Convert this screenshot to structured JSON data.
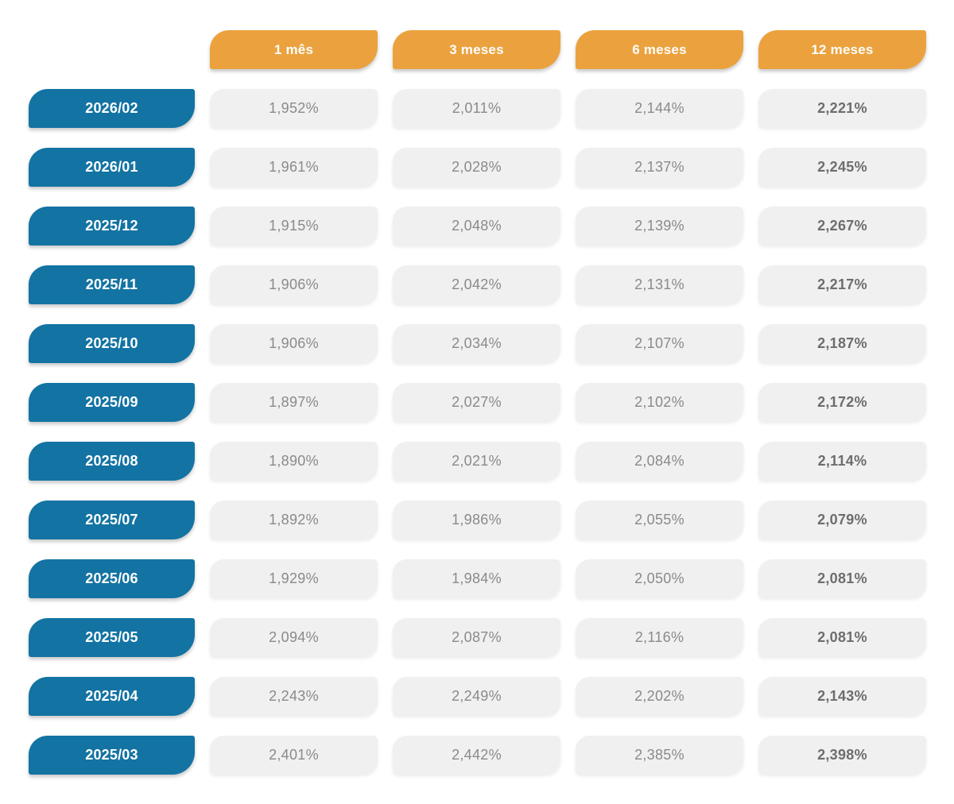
{
  "chart_data": {
    "type": "table",
    "title": "",
    "column_headers": [
      "1 mês",
      "3 meses",
      "6 meses",
      "12 meses"
    ],
    "rows": [
      {
        "label": "2026/02",
        "values": [
          "1,952%",
          "2,011%",
          "2,144%",
          "2,221%"
        ]
      },
      {
        "label": "2026/01",
        "values": [
          "1,961%",
          "2,028%",
          "2,137%",
          "2,245%"
        ]
      },
      {
        "label": "2025/12",
        "values": [
          "1,915%",
          "2,048%",
          "2,139%",
          "2,267%"
        ]
      },
      {
        "label": "2025/11",
        "values": [
          "1,906%",
          "2,042%",
          "2,131%",
          "2,217%"
        ]
      },
      {
        "label": "2025/10",
        "values": [
          "1,906%",
          "2,034%",
          "2,107%",
          "2,187%"
        ]
      },
      {
        "label": "2025/09",
        "values": [
          "1,897%",
          "2,027%",
          "2,102%",
          "2,172%"
        ]
      },
      {
        "label": "2025/08",
        "values": [
          "1,890%",
          "2,021%",
          "2,084%",
          "2,114%"
        ]
      },
      {
        "label": "2025/07",
        "values": [
          "1,892%",
          "1,986%",
          "2,055%",
          "2,079%"
        ]
      },
      {
        "label": "2025/06",
        "values": [
          "1,929%",
          "1,984%",
          "2,050%",
          "2,081%"
        ]
      },
      {
        "label": "2025/05",
        "values": [
          "2,094%",
          "2,087%",
          "2,116%",
          "2,081%"
        ]
      },
      {
        "label": "2025/04",
        "values": [
          "2,243%",
          "2,249%",
          "2,202%",
          "2,143%"
        ]
      },
      {
        "label": "2025/03",
        "values": [
          "2,401%",
          "2,442%",
          "2,385%",
          "2,398%"
        ]
      }
    ],
    "layout_hints": {
      "last_column_bold": true,
      "grid": "off"
    }
  },
  "colors": {
    "header_bg": "#EBA23E",
    "row_label_bg": "#1373A3",
    "value_cell_bg": "#F0F0F0",
    "value_text": "#8A8A8A",
    "value_text_bold": "#6D6D6D",
    "header_text": "#FFFFFF"
  }
}
